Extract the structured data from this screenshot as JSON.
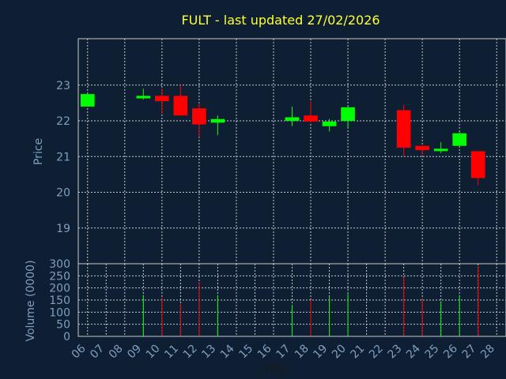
{
  "chart_data": [
    {
      "type": "candlestick",
      "title": "FULT - last updated 27/02/2026",
      "ylabel": "Price",
      "ylim": [
        18.0,
        24.3
      ],
      "yticks": [
        19,
        20,
        21,
        22,
        23
      ],
      "grid": true,
      "up_color": "#00ff00",
      "down_color": "#ff0000",
      "candles": [
        {
          "day": 6,
          "open": 22.4,
          "high": 22.75,
          "low": 22.4,
          "close": 22.75
        },
        {
          "day": 9,
          "open": 22.63,
          "high": 22.9,
          "low": 22.6,
          "close": 22.7
        },
        {
          "day": 10,
          "open": 22.7,
          "high": 22.9,
          "low": 22.2,
          "close": 22.55
        },
        {
          "day": 11,
          "open": 22.7,
          "high": 23.0,
          "low": 22.15,
          "close": 22.15
        },
        {
          "day": 12,
          "open": 22.35,
          "high": 22.5,
          "low": 21.55,
          "close": 21.9
        },
        {
          "day": 13,
          "open": 21.95,
          "high": 22.15,
          "low": 21.6,
          "close": 22.05
        },
        {
          "day": 17,
          "open": 22.0,
          "high": 22.4,
          "low": 21.85,
          "close": 22.1
        },
        {
          "day": 18,
          "open": 22.15,
          "high": 22.55,
          "low": 21.95,
          "close": 21.98
        },
        {
          "day": 19,
          "open": 21.85,
          "high": 22.05,
          "low": 21.7,
          "close": 21.98
        },
        {
          "day": 20,
          "open": 22.0,
          "high": 22.4,
          "low": 21.8,
          "close": 22.38
        },
        {
          "day": 23,
          "open": 22.3,
          "high": 22.45,
          "low": 21.0,
          "close": 21.25
        },
        {
          "day": 24,
          "open": 21.3,
          "high": 21.3,
          "low": 21.05,
          "close": 21.18
        },
        {
          "day": 25,
          "open": 21.2,
          "high": 21.4,
          "low": 21.1,
          "close": 21.22
        },
        {
          "day": 26,
          "open": 21.3,
          "high": 21.7,
          "low": 21.3,
          "close": 21.65
        },
        {
          "day": 27,
          "open": 21.15,
          "high": 21.15,
          "low": 20.2,
          "close": 20.4
        }
      ]
    },
    {
      "type": "bar",
      "ylabel": "Volume (0000)",
      "xlabel": "Day",
      "ylim": [
        0,
        300
      ],
      "yticks": [
        0,
        50,
        100,
        150,
        200,
        250,
        300
      ],
      "grid": true,
      "categories": [
        "06",
        "07",
        "08",
        "09",
        "10",
        "11",
        "12",
        "13",
        "14",
        "15",
        "16",
        "17",
        "18",
        "19",
        "20",
        "21",
        "22",
        "23",
        "24",
        "25",
        "26",
        "27",
        "28"
      ],
      "bars": [
        {
          "day": 6,
          "value": 0,
          "direction": "up"
        },
        {
          "day": 9,
          "value": 170,
          "direction": "up"
        },
        {
          "day": 10,
          "value": 160,
          "direction": "down"
        },
        {
          "day": 11,
          "value": 135,
          "direction": "down"
        },
        {
          "day": 12,
          "value": 225,
          "direction": "down"
        },
        {
          "day": 13,
          "value": 170,
          "direction": "up"
        },
        {
          "day": 17,
          "value": 130,
          "direction": "up"
        },
        {
          "day": 18,
          "value": 150,
          "direction": "down"
        },
        {
          "day": 19,
          "value": 165,
          "direction": "up"
        },
        {
          "day": 20,
          "value": 180,
          "direction": "up"
        },
        {
          "day": 23,
          "value": 245,
          "direction": "down"
        },
        {
          "day": 24,
          "value": 155,
          "direction": "down"
        },
        {
          "day": 25,
          "value": 145,
          "direction": "up"
        },
        {
          "day": 26,
          "value": 170,
          "direction": "up"
        },
        {
          "day": 27,
          "value": 290,
          "direction": "down"
        }
      ]
    }
  ]
}
